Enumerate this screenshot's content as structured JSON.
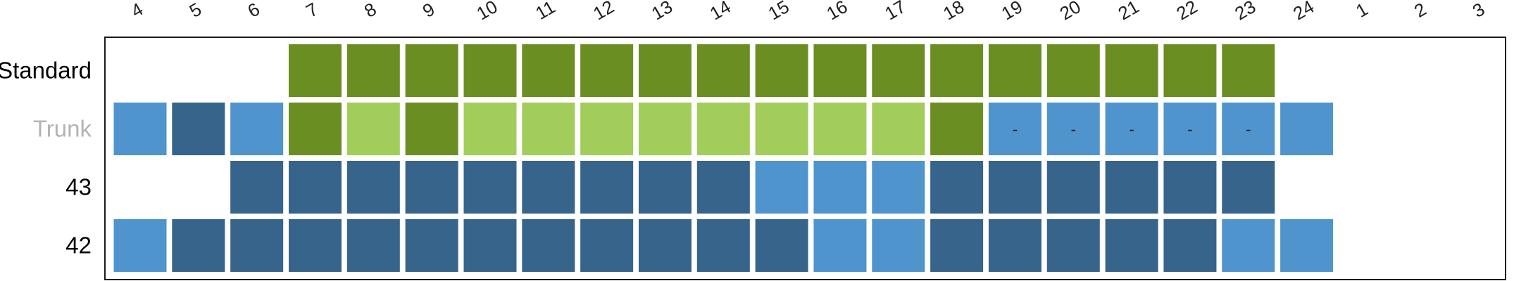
{
  "chart_data": {
    "type": "heatmap",
    "columns": [
      "4",
      "5",
      "6",
      "7",
      "8",
      "9",
      "10",
      "11",
      "12",
      "13",
      "14",
      "15",
      "16",
      "17",
      "18",
      "19",
      "20",
      "21",
      "22",
      "23",
      "24",
      "1",
      "2",
      "3"
    ],
    "rows": [
      {
        "label": "Standard",
        "label_color": "#000000",
        "cells": [
          null,
          null,
          null,
          "dark-green",
          "dark-green",
          "dark-green",
          "dark-green",
          "dark-green",
          "dark-green",
          "dark-green",
          "dark-green",
          "dark-green",
          "dark-green",
          "dark-green",
          "dark-green",
          "dark-green",
          "dark-green",
          "dark-green",
          "dark-green",
          "dark-green",
          null,
          null,
          null,
          null
        ],
        "cell_text": []
      },
      {
        "label": "Trunk",
        "label_color": "#b3b3b3",
        "cells": [
          "light-blue",
          "dark-blue",
          "light-blue",
          "dark-green",
          "light-green",
          "dark-green",
          "light-green",
          "light-green",
          "light-green",
          "light-green",
          "light-green",
          "light-green",
          "light-green",
          "light-green",
          "dark-green",
          "light-blue",
          "light-blue",
          "light-blue",
          "light-blue",
          "light-blue",
          "light-blue",
          null,
          null,
          null
        ],
        "cell_text": [
          null,
          null,
          null,
          null,
          null,
          null,
          null,
          null,
          null,
          null,
          null,
          null,
          null,
          null,
          null,
          "-",
          "-",
          "-",
          "-",
          "-",
          null,
          null,
          null,
          null
        ]
      },
      {
        "label": "43",
        "label_color": "#000000",
        "cells": [
          null,
          null,
          "dark-blue",
          "dark-blue",
          "dark-blue",
          "dark-blue",
          "dark-blue",
          "dark-blue",
          "dark-blue",
          "dark-blue",
          "dark-blue",
          "light-blue",
          "light-blue",
          "light-blue",
          "dark-blue",
          "dark-blue",
          "dark-blue",
          "dark-blue",
          "dark-blue",
          "dark-blue",
          null,
          null,
          null,
          null
        ],
        "cell_text": []
      },
      {
        "label": "42",
        "label_color": "#000000",
        "cells": [
          "light-blue",
          "dark-blue",
          "dark-blue",
          "dark-blue",
          "dark-blue",
          "dark-blue",
          "dark-blue",
          "dark-blue",
          "dark-blue",
          "dark-blue",
          "dark-blue",
          "dark-blue",
          "light-blue",
          "light-blue",
          "dark-blue",
          "dark-blue",
          "dark-blue",
          "dark-blue",
          "dark-blue",
          "light-blue",
          "light-blue",
          null,
          null,
          null
        ],
        "cell_text": []
      }
    ],
    "colors": {
      "dark-green": "#6b8e23",
      "light-green": "#a2cd5a",
      "dark-blue": "#36648b",
      "light-blue": "#4f94cd"
    },
    "legend": "none",
    "grid": false
  }
}
